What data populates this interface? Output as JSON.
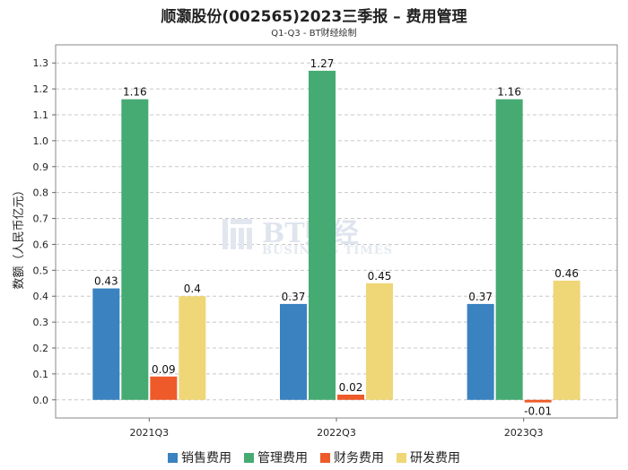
{
  "chart_data": {
    "type": "bar",
    "title": "顺灏股份(002565)2023三季报 – 费用管理",
    "subtitle": "Q1-Q3 - BT财经绘制",
    "ylabel": "数额（人民币亿元）",
    "xlabel": "",
    "categories": [
      "2021Q3",
      "2022Q3",
      "2023Q3"
    ],
    "series": [
      {
        "name": "销售费用",
        "color": "#3a82c0",
        "values": [
          0.43,
          0.37,
          0.37
        ]
      },
      {
        "name": "管理费用",
        "color": "#46ab72",
        "values": [
          1.16,
          1.27,
          1.16
        ]
      },
      {
        "name": "财务费用",
        "color": "#ee5a2a",
        "values": [
          0.09,
          0.02,
          -0.01
        ]
      },
      {
        "name": "研发费用",
        "color": "#efd677",
        "values": [
          0.4,
          0.45,
          0.46
        ]
      }
    ],
    "value_labels": [
      [
        "0.43",
        "0.37",
        "0.37"
      ],
      [
        "1.16",
        "1.27",
        "1.16"
      ],
      [
        "0.09",
        "0.02",
        "-0.01"
      ],
      [
        "0.4",
        "0.45",
        "0.46"
      ]
    ],
    "yticks": [
      "0.0",
      "0.1",
      "0.2",
      "0.3",
      "0.4",
      "0.5",
      "0.6",
      "0.7",
      "0.8",
      "0.9",
      "1.0",
      "1.1",
      "1.2",
      "1.3"
    ],
    "ylim": [
      -0.07,
      1.37
    ],
    "grid": true,
    "legend_position": "bottom-center",
    "watermark": {
      "main": "BT财经",
      "sub": "BUSINESS TIMES"
    }
  }
}
